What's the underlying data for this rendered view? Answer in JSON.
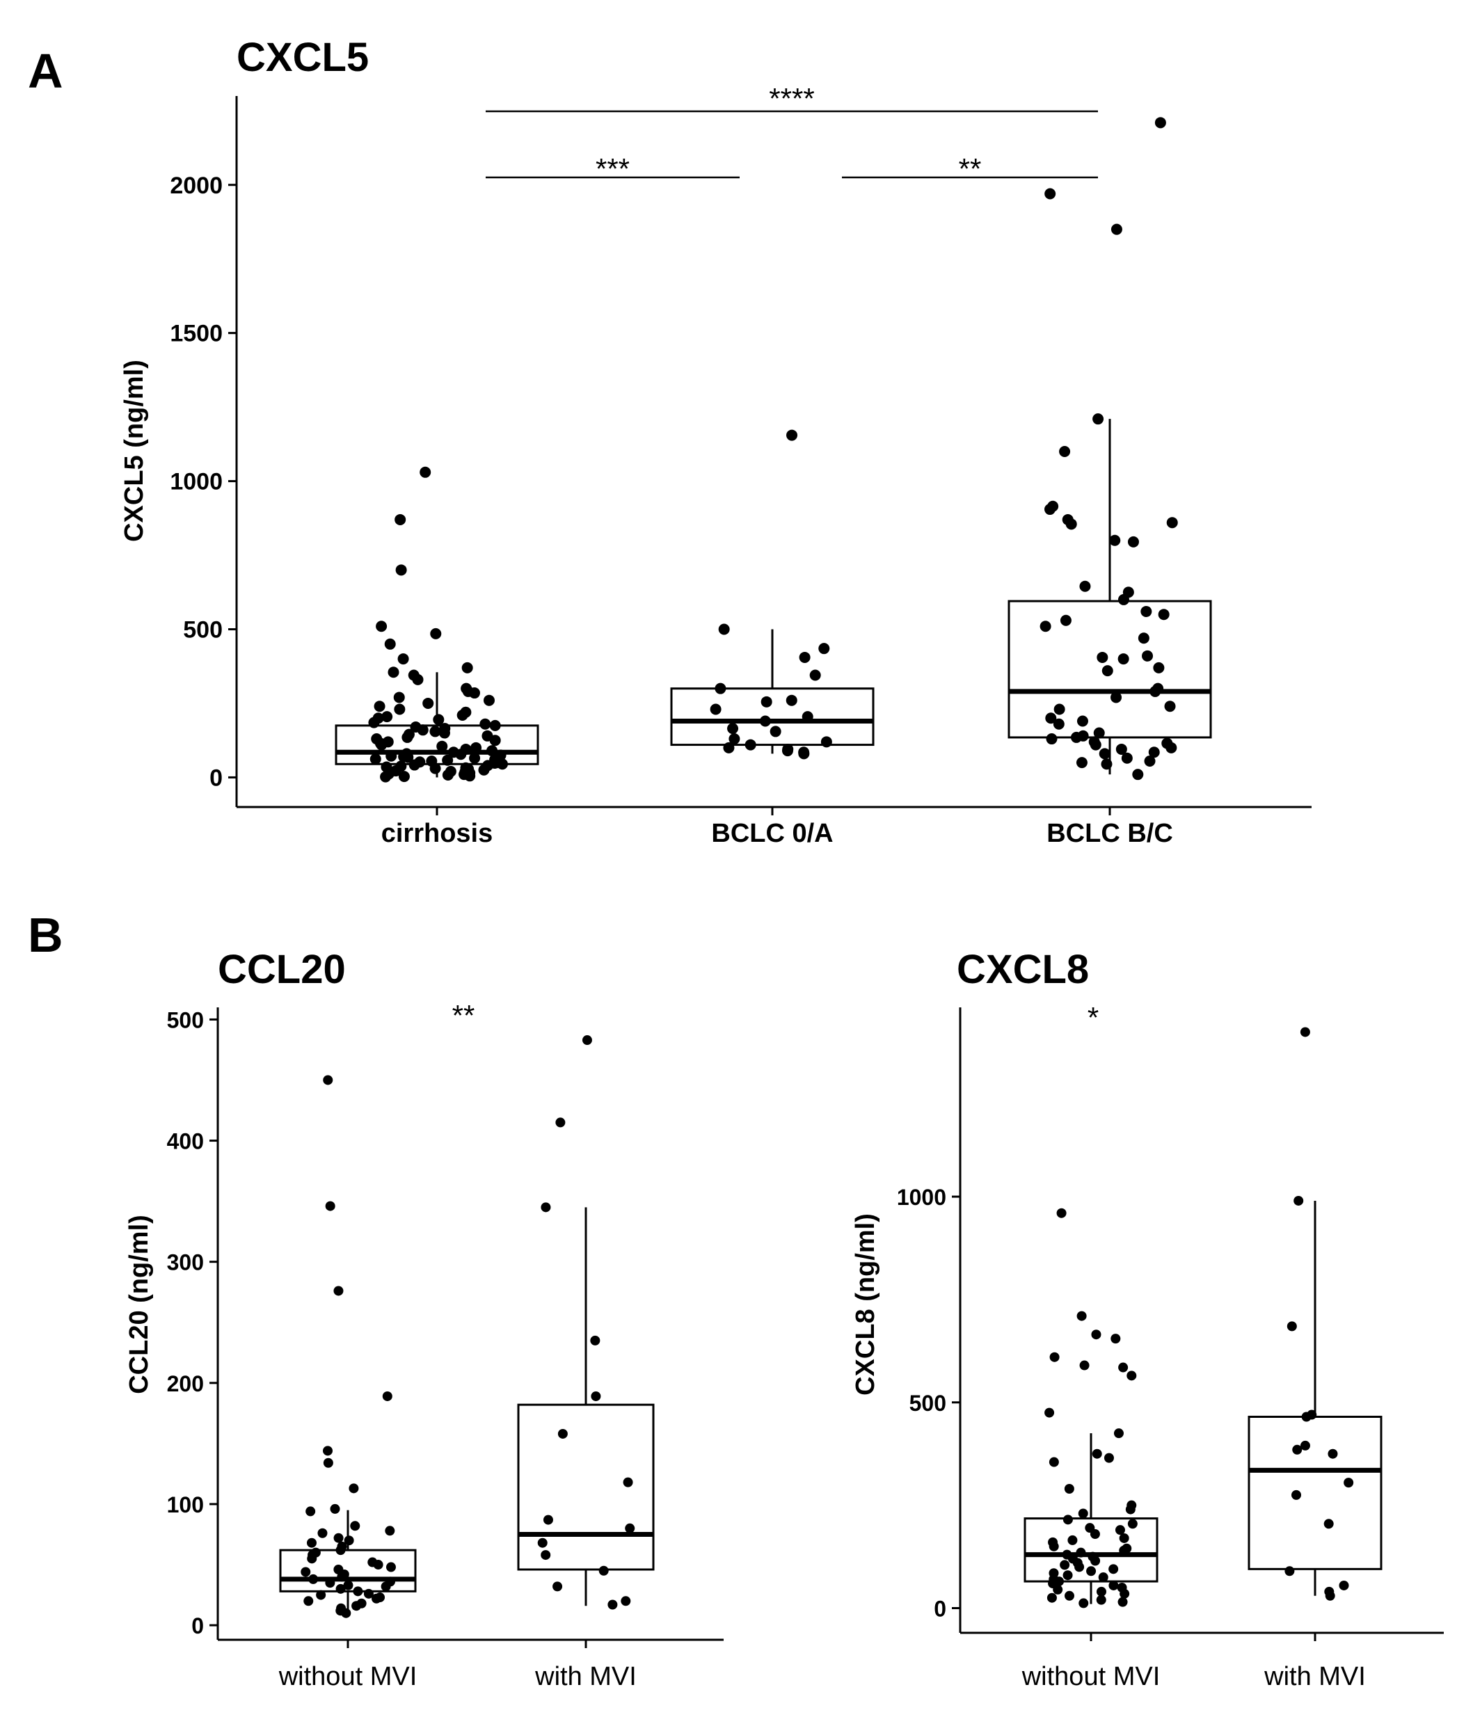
{
  "panels": [
    {
      "letter": "A"
    },
    {
      "letter": "B"
    }
  ],
  "chart_data": [
    {
      "type": "box",
      "title": "CXCL5",
      "ylabel": "CXCL5 (ng/ml)",
      "xlabel": "",
      "ylim": [
        -100,
        2300
      ],
      "yticks": [
        0,
        500,
        1000,
        1500,
        2000
      ],
      "categories": [
        "cirrhosis",
        "BCLC 0/A",
        "BCLC B/C"
      ],
      "boxes": [
        {
          "q1": 45,
          "median": 85,
          "q3": 175,
          "whisker_low": 0,
          "whisker_high": 355
        },
        {
          "q1": 110,
          "median": 190,
          "q3": 300,
          "whisker_low": 80,
          "whisker_high": 500
        },
        {
          "q1": 135,
          "median": 290,
          "q3": 595,
          "whisker_low": 10,
          "whisker_high": 1210
        }
      ],
      "points": [
        [
          1030,
          870,
          700,
          510,
          485,
          450,
          400,
          370,
          355,
          345,
          330,
          300,
          290,
          285,
          270,
          260,
          250,
          240,
          230,
          220,
          210,
          205,
          200,
          195,
          185,
          180,
          175,
          170,
          165,
          160,
          155,
          150,
          145,
          140,
          135,
          130,
          125,
          120,
          115,
          110,
          105,
          100,
          95,
          90,
          85,
          80,
          78,
          75,
          72,
          70,
          68,
          65,
          62,
          60,
          58,
          55,
          52,
          50,
          48,
          45,
          42,
          40,
          38,
          35,
          32,
          30,
          28,
          25,
          22,
          20,
          18,
          15,
          12,
          10,
          8,
          5,
          3,
          2
        ],
        [
          1155,
          500,
          435,
          405,
          345,
          300,
          260,
          255,
          230,
          205,
          190,
          165,
          155,
          130,
          120,
          110,
          100,
          95,
          90,
          85,
          80
        ],
        [
          2210,
          1970,
          1850,
          1210,
          1100,
          915,
          905,
          870,
          860,
          855,
          800,
          795,
          645,
          625,
          600,
          560,
          550,
          530,
          510,
          470,
          410,
          405,
          400,
          370,
          360,
          300,
          290,
          270,
          240,
          230,
          200,
          190,
          180,
          150,
          140,
          135,
          130,
          120,
          115,
          110,
          100,
          95,
          85,
          80,
          65,
          55,
          50,
          45,
          10
        ]
      ],
      "comparisons": [
        {
          "from": 0,
          "to": 2,
          "label": "****"
        },
        {
          "from": 0,
          "to": 1,
          "label": "***"
        },
        {
          "from": 1,
          "to": 2,
          "label": "**"
        }
      ]
    },
    {
      "type": "box",
      "title": "CCL20",
      "ylabel": "CCL20 (ng/ml)",
      "xlabel": "",
      "ylim": [
        -12,
        510
      ],
      "yticks": [
        0,
        100,
        200,
        300,
        400,
        500
      ],
      "categories": [
        "without MVI",
        "with MVI"
      ],
      "boxes": [
        {
          "q1": 28,
          "median": 38,
          "q3": 62,
          "whisker_low": 10,
          "whisker_high": 95
        },
        {
          "q1": 46,
          "median": 75,
          "q3": 182,
          "whisker_low": 16,
          "whisker_high": 345
        }
      ],
      "points": [
        [
          450,
          346,
          276,
          189,
          144,
          134,
          113,
          96,
          94,
          82,
          78,
          76,
          72,
          70,
          68,
          65,
          62,
          60,
          58,
          55,
          52,
          50,
          48,
          46,
          44,
          42,
          40,
          38,
          36,
          35,
          33,
          32,
          30,
          28,
          26,
          25,
          23,
          22,
          20,
          18,
          16,
          14,
          12,
          10
        ],
        [
          483,
          415,
          345,
          235,
          189,
          158,
          118,
          87,
          80,
          68,
          58,
          45,
          32,
          20,
          17
        ]
      ],
      "comparisons": [
        {
          "from": 0,
          "to": 1,
          "label": "**"
        }
      ]
    },
    {
      "type": "box",
      "title": "CXCL8",
      "ylabel": "CXCL8 (ng/ml)",
      "xlabel": "",
      "ylim": [
        -60,
        1460
      ],
      "yticks": [
        0,
        500,
        1000
      ],
      "categories": [
        "without MVI",
        "with MVI"
      ],
      "boxes": [
        {
          "q1": 65,
          "median": 130,
          "q3": 218,
          "whisker_low": 10,
          "whisker_high": 425
        },
        {
          "q1": 95,
          "median": 335,
          "q3": 465,
          "whisker_low": 30,
          "whisker_high": 990
        }
      ],
      "points": [
        [
          960,
          710,
          665,
          655,
          610,
          590,
          585,
          565,
          475,
          425,
          375,
          365,
          355,
          290,
          250,
          240,
          230,
          215,
          205,
          195,
          190,
          180,
          170,
          165,
          160,
          150,
          145,
          140,
          135,
          130,
          125,
          120,
          115,
          110,
          105,
          100,
          95,
          90,
          85,
          80,
          75,
          70,
          65,
          60,
          55,
          50,
          45,
          40,
          35,
          30,
          25,
          20,
          15,
          12
        ],
        [
          1400,
          990,
          685,
          470,
          465,
          395,
          385,
          375,
          305,
          275,
          205,
          90,
          55,
          40,
          30
        ]
      ],
      "comparisons": [
        {
          "from": 0,
          "to": 1,
          "label": "*"
        }
      ]
    }
  ]
}
